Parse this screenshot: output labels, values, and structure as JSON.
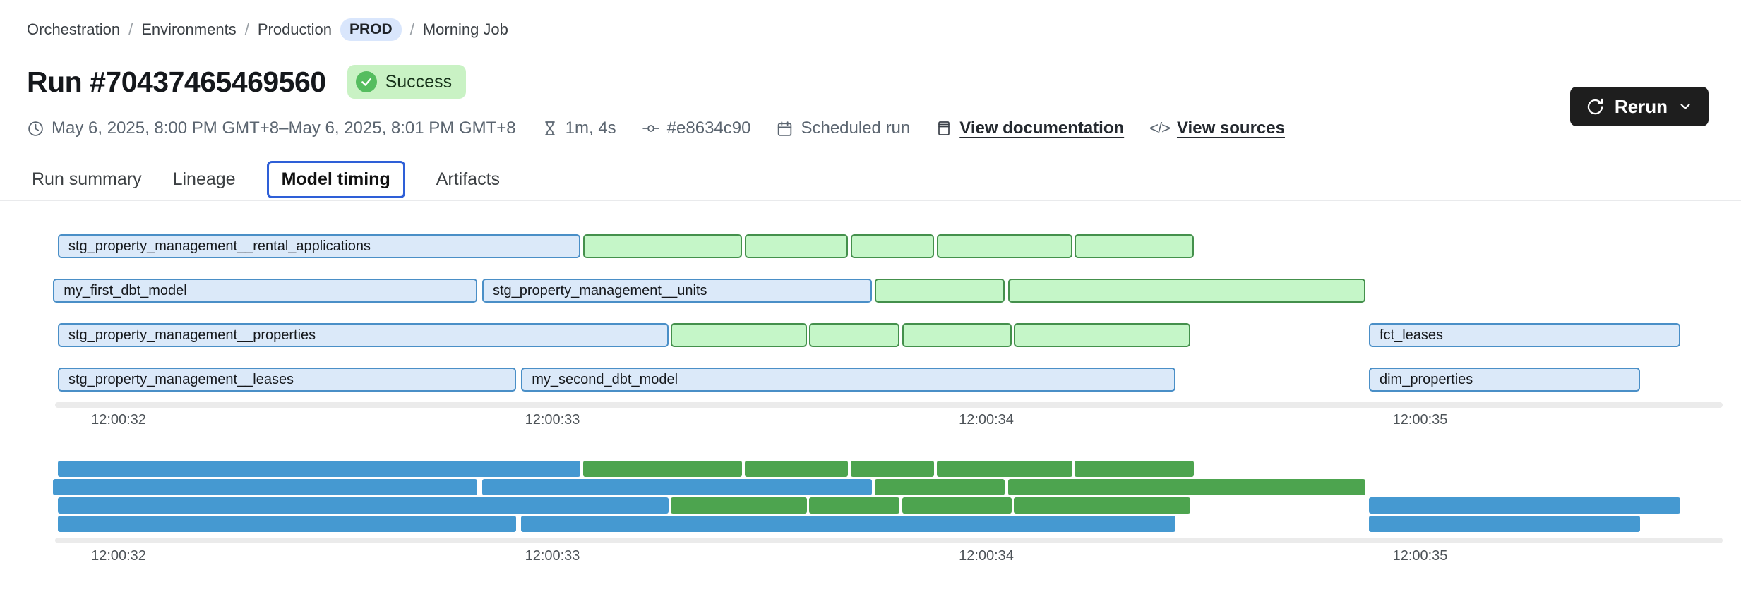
{
  "breadcrumb": {
    "items": [
      "Orchestration",
      "Environments",
      "Production",
      "Morning Job"
    ],
    "env_badge": "PROD",
    "separator": "/"
  },
  "header": {
    "title": "Run #70437465469560",
    "status": "Success"
  },
  "meta": {
    "schedule": "May 6, 2025, 8:00 PM GMT+8–May 6, 2025, 8:01 PM GMT+8",
    "duration": "1m, 4s",
    "commit": "#e8634c90",
    "trigger": "Scheduled run",
    "docs_link": "View documentation",
    "sources_link": "View sources",
    "code_glyph": "</>"
  },
  "toolbar": {
    "rerun_label": "Rerun"
  },
  "tabs": [
    {
      "label": "Run summary",
      "active": false
    },
    {
      "label": "Lineage",
      "active": false
    },
    {
      "label": "Model timing",
      "active": true
    },
    {
      "label": "Artifacts",
      "active": false
    }
  ],
  "colors": {
    "model_fill": "#dbe9f9",
    "model_border": "#4a8fc7",
    "other_fill": "#c5f6c8",
    "other_border": "#44904c",
    "minimap_model": "#4599d1",
    "minimap_other": "#4da44f",
    "active_tab_border": "#2e5fd7",
    "success_badge_bg": "#c9f2c4",
    "success_icon": "#55bd5f",
    "prod_badge_bg": "#d9e6fc",
    "rerun_bg": "#1e1e1e"
  },
  "chart_data": {
    "type": "gantt",
    "title": "Model timing",
    "axis_ticks": [
      {
        "label": "12:00:32",
        "t": 32
      },
      {
        "label": "12:00:33",
        "t": 33
      },
      {
        "label": "12:00:34",
        "t": 34
      },
      {
        "label": "12:00:35",
        "t": 35
      }
    ],
    "rows": [
      {
        "bars": [
          {
            "label": "stg_property_management__rental_applications",
            "kind": "primary",
            "start": 31.86,
            "end": 33.064
          },
          {
            "label": "",
            "kind": "secondary",
            "start": 33.071,
            "end": 33.437
          },
          {
            "label": "",
            "kind": "secondary",
            "start": 33.443,
            "end": 33.681
          },
          {
            "label": "",
            "kind": "secondary",
            "start": 33.687,
            "end": 33.879
          },
          {
            "label": "",
            "kind": "secondary",
            "start": 33.886,
            "end": 34.198
          },
          {
            "label": "",
            "kind": "secondary",
            "start": 34.203,
            "end": 34.478
          }
        ]
      },
      {
        "bars": [
          {
            "label": "my_first_dbt_model",
            "kind": "primary",
            "start": 31.849,
            "end": 32.827
          },
          {
            "label": "stg_property_management__units",
            "kind": "primary",
            "start": 32.838,
            "end": 33.736
          },
          {
            "label": "",
            "kind": "secondary",
            "start": 33.743,
            "end": 34.042
          },
          {
            "label": "",
            "kind": "secondary",
            "start": 34.05,
            "end": 34.874
          }
        ]
      },
      {
        "bars": [
          {
            "label": "stg_property_management__properties",
            "kind": "primary",
            "start": 31.86,
            "end": 33.268
          },
          {
            "label": "",
            "kind": "secondary",
            "start": 33.272,
            "end": 33.587
          },
          {
            "label": "",
            "kind": "secondary",
            "start": 33.591,
            "end": 33.8
          },
          {
            "label": "",
            "kind": "secondary",
            "start": 33.806,
            "end": 34.058
          },
          {
            "label": "",
            "kind": "secondary",
            "start": 34.063,
            "end": 34.47
          },
          {
            "label": "fct_leases",
            "kind": "primary",
            "start": 34.882,
            "end": 35.6
          }
        ]
      },
      {
        "bars": [
          {
            "label": "stg_property_management__leases",
            "kind": "primary",
            "start": 31.86,
            "end": 32.916
          },
          {
            "label": "my_second_dbt_model",
            "kind": "primary",
            "start": 32.928,
            "end": 34.436
          },
          {
            "label": "dim_properties",
            "kind": "primary",
            "start": 34.882,
            "end": 35.507
          }
        ]
      }
    ]
  }
}
